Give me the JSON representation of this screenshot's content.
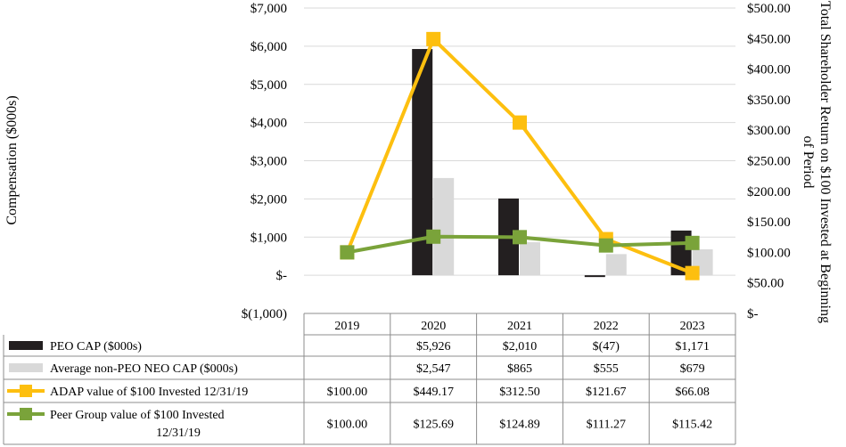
{
  "chart_data": {
    "type": "bar",
    "categories": [
      "2019",
      "2020",
      "2021",
      "2022",
      "2023"
    ],
    "ylabel": "Compensation ($000s)",
    "y2label_line1": "Total Shareholder Return on $100 Invested at Beginning",
    "y2label_line2": "of Period",
    "ylim": [
      -1000,
      7000
    ],
    "y2lim": [
      0,
      500
    ],
    "yticks": [
      "$7,000",
      "$6,000",
      "$5,000",
      "$4,000",
      "$3,000",
      "$2,000",
      "$1,000",
      "$-",
      "$(1,000)"
    ],
    "y2ticks": [
      "$500.00",
      "$450.00",
      "$400.00",
      "$350.00",
      "$300.00",
      "$250.00",
      "$200.00",
      "$150.00",
      "$100.00",
      "$50.00",
      "$-"
    ],
    "grid": true,
    "series": [
      {
        "name": "PEO CAP ($000s)",
        "kind": "bar",
        "axis": "left",
        "color": "#231f20",
        "values": [
          null,
          5926,
          2010,
          -47,
          1171
        ],
        "labels": [
          "",
          "$5,926",
          "$2,010",
          "$(47)",
          "$1,171"
        ]
      },
      {
        "name": "Average non-PEO NEO CAP ($000s)",
        "kind": "bar",
        "axis": "left",
        "color": "#d9d9d9",
        "values": [
          null,
          2547,
          865,
          555,
          679
        ],
        "labels": [
          "",
          "$2,547",
          "$865",
          "$555",
          "$679"
        ]
      },
      {
        "name": "ADAP value of $100 Invested 12/31/19",
        "kind": "line",
        "axis": "right",
        "color": "#fdbf0f",
        "values": [
          100.0,
          449.17,
          312.5,
          121.67,
          66.08
        ],
        "labels": [
          "$100.00",
          "$449.17",
          "$312.50",
          "$121.67",
          "$66.08"
        ]
      },
      {
        "name": "Peer Group value of $100 Invested",
        "name_line2": "12/31/19",
        "kind": "line",
        "axis": "right",
        "color": "#7aa33a",
        "values": [
          100.0,
          125.69,
          124.89,
          111.27,
          115.42
        ],
        "labels": [
          "$100.00",
          "$125.69",
          "$124.89",
          "$111.27",
          "$115.42"
        ]
      }
    ]
  }
}
